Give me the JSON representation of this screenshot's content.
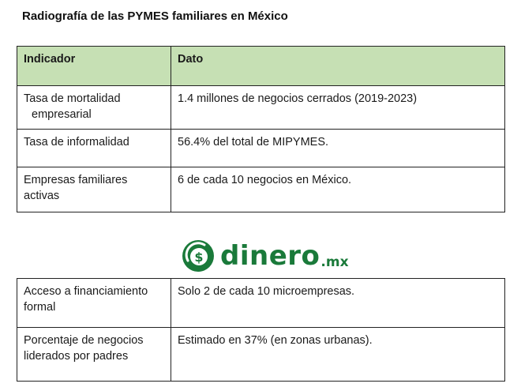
{
  "document": {
    "title": "Radiografía de las PYMES familiares en México"
  },
  "table_top": {
    "headers": [
      "Indicador",
      "Dato"
    ],
    "rows": [
      {
        "indicador_line1": "Tasa de mortalidad",
        "indicador_line2": "empresarial",
        "dato": "1.4 millones de negocios cerrados (2019-2023)"
      },
      {
        "indicador": "Tasa de informalidad",
        "dato": "56.4% del total de MIPYMES."
      },
      {
        "indicador_line1": "Empresas familiares",
        "indicador_line2": "activas",
        "dato": "6 de cada 10 negocios en México."
      }
    ]
  },
  "logo": {
    "word": "dinero",
    "tld": ".mx",
    "icon": "dollar-coin-icon",
    "color": "#1a7a3a"
  },
  "table_bottom": {
    "rows": [
      {
        "indicador_line1": "Acceso a financiamiento",
        "indicador_line2": "formal",
        "dato": "Solo 2 de cada 10 microempresas."
      },
      {
        "indicador_line1": "Porcentaje de negocios",
        "indicador_line2": "liderados por padres",
        "dato": "Estimado en 37% (en zonas urbanas)."
      }
    ]
  }
}
